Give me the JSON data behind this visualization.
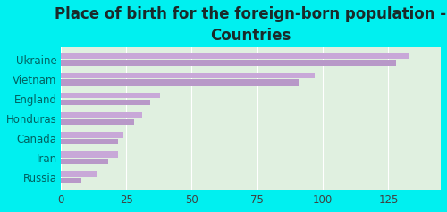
{
  "title": "Place of birth for the foreign-born population -\nCountries",
  "categories": [
    "Ukraine",
    "Vietnam",
    "England",
    "Honduras",
    "Canada",
    "Iran",
    "Russia"
  ],
  "bar1_values": [
    133,
    97,
    38,
    31,
    24,
    22,
    14
  ],
  "bar2_values": [
    128,
    91,
    34,
    28,
    22,
    18,
    8
  ],
  "bar_color1": "#c8a8d8",
  "bar_color2": "#b898c8",
  "background_outer": "#00f0f0",
  "background_inner_left": "#e0f0e0",
  "background_inner_right": "#f0faf0",
  "xlim": [
    0,
    145
  ],
  "xticks": [
    0,
    25,
    50,
    75,
    100,
    125
  ],
  "title_fontsize": 12,
  "title_color": "#1a2a2a",
  "bar_height": 0.28,
  "bar_gap": 0.05,
  "label_fontsize": 8.5,
  "label_color": "#006060",
  "tick_fontsize": 8.5,
  "tick_color": "#404040"
}
